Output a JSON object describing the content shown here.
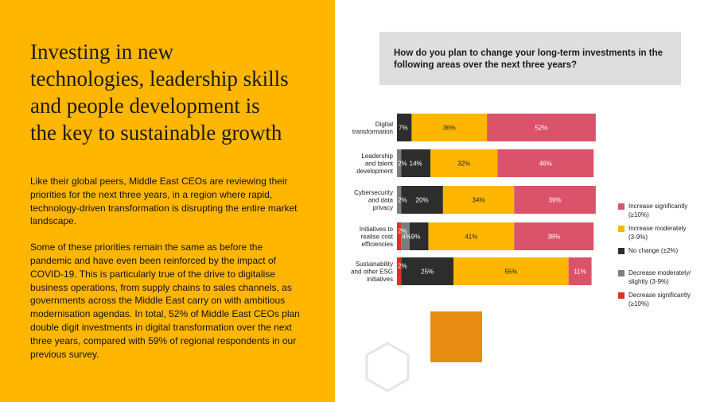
{
  "headline": {
    "lines": [
      "Investing in new",
      "technologies, leadership skills",
      "and people development is",
      "the key to sustainable growth"
    ]
  },
  "body": {
    "paragraph1": "Like their global peers, Middle East CEOs are reviewing their priorities for the next three years, in a region where rapid, technology-driven transformation is disrupting the entire market landscape.",
    "paragraph2": "Some of these priorities remain the same as before the pandemic and have even been reinforced by the impact of COVID-19. This is particularly true of the drive to digitalise business operations, from supply chains to sales channels, as governments across the Middle East carry on with ambitious modernisation agendas. In total, 52% of Middle East CEOs plan double digit investments in digital transformation over the next three years, compared with 59% of regional respondents in our previous survey."
  },
  "question": "How do you plan to change your long-term investments in the following areas over the next three years?",
  "colors": {
    "left_panel": "#FFB600",
    "question_box": "#DEDEDE",
    "accent_square": "#E88D14"
  },
  "chart_data": {
    "type": "bar",
    "orientation": "horizontal",
    "stacked": true,
    "categories": [
      [
        "Digital",
        "transformation"
      ],
      [
        "Leadership",
        "and talent",
        "development"
      ],
      [
        "Cybersecurity",
        "and data",
        "privacy"
      ],
      [
        "Initiatives to",
        "realise cost",
        "efficiencies"
      ],
      [
        "Sustainability",
        "and other ESG",
        "initiatives"
      ]
    ],
    "xlim": [
      0,
      100
    ],
    "grid": false,
    "legend_position": "right",
    "series": [
      {
        "name": "Decrease significantly (≥10%)",
        "legend_lines": [
          "Decrease significantly",
          "(≥10%)"
        ],
        "color": "#E0301E",
        "values": [
          0,
          0,
          0,
          2,
          2
        ],
        "labels": [
          "",
          "",
          "",
          "2%",
          "2%"
        ]
      },
      {
        "name": "Decrease moderately/ slightly (3-9%)",
        "legend_lines": [
          "Decrease moderately/",
          "slightly (3-9%)"
        ],
        "color": "#7D7D7D",
        "values": [
          0,
          2,
          2,
          4,
          0
        ],
        "labels": [
          "",
          "2%",
          "2%",
          "4%",
          ""
        ]
      },
      {
        "name": "No change (±2%)",
        "legend_lines": [
          "No change (±2%)"
        ],
        "color": "#2D2D2D",
        "values": [
          7,
          14,
          20,
          9,
          25
        ],
        "labels": [
          "7%",
          "14%",
          "20%",
          "9%",
          "25%"
        ]
      },
      {
        "name": "Increase moderately (3-9%)",
        "legend_lines": [
          "Increase moderately",
          "(3-9%)"
        ],
        "color": "#FFB600",
        "values": [
          36,
          32,
          34,
          41,
          55
        ],
        "labels": [
          "36%",
          "32%",
          "34%",
          "41%",
          "55%"
        ]
      },
      {
        "name": "Increase significantly (≥10%)",
        "legend_lines": [
          "Increase significantly",
          "(≥10%)"
        ],
        "color": "#DB536A",
        "values": [
          52,
          46,
          39,
          38,
          11
        ],
        "labels": [
          "52%",
          "46%",
          "39%",
          "38%",
          "11%"
        ]
      }
    ],
    "legend_order": [
      4,
      3,
      2,
      1,
      0
    ]
  }
}
